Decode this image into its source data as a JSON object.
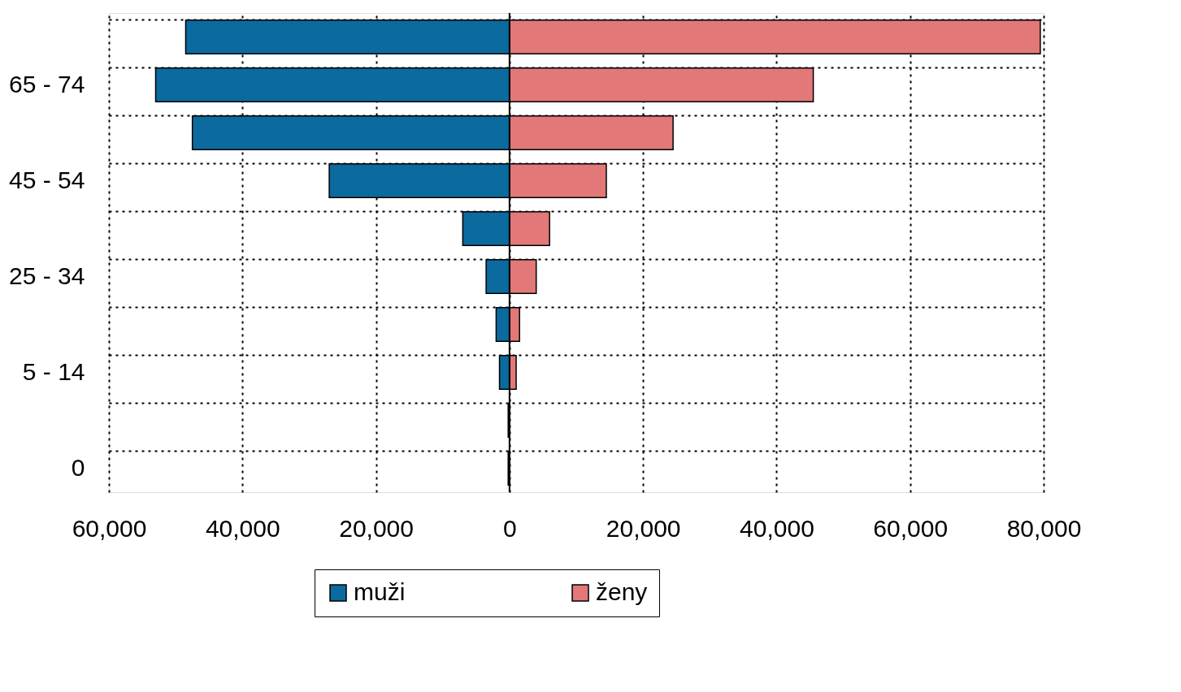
{
  "chart_data": {
    "type": "bar",
    "orientation": "horizontal",
    "categories": [
      null,
      "65 - 74",
      null,
      "45 - 54",
      null,
      "25 - 34",
      null,
      "5 - 14",
      null,
      "0"
    ],
    "series": [
      {
        "name": "muži",
        "color": "#0b6a9e",
        "values": [
          -48500,
          -53000,
          -47500,
          -27000,
          -7000,
          -3500,
          -2000,
          -1500,
          -200,
          -200
        ]
      },
      {
        "name": "ženy",
        "color": "#e27878",
        "values": [
          79500,
          45500,
          24500,
          14500,
          6000,
          4000,
          1500,
          1000,
          null,
          null
        ]
      }
    ],
    "xlim": [
      -60000,
      80000
    ],
    "xticks": [
      {
        "value": -60000,
        "label": "60,000"
      },
      {
        "value": -40000,
        "label": "40,000"
      },
      {
        "value": -20000,
        "label": "20,000"
      },
      0,
      {
        "value": 20000,
        "label": "20,000"
      },
      {
        "value": 40000,
        "label": "40,000"
      },
      {
        "value": 60000,
        "label": "60,000"
      },
      {
        "value": 80000,
        "label": "80,000"
      }
    ],
    "ref_lines": [
      {
        "axis": "x",
        "value": 0,
        "color": "#000000"
      }
    ],
    "grid": true,
    "legend": "bottom",
    "stacked": true
  }
}
